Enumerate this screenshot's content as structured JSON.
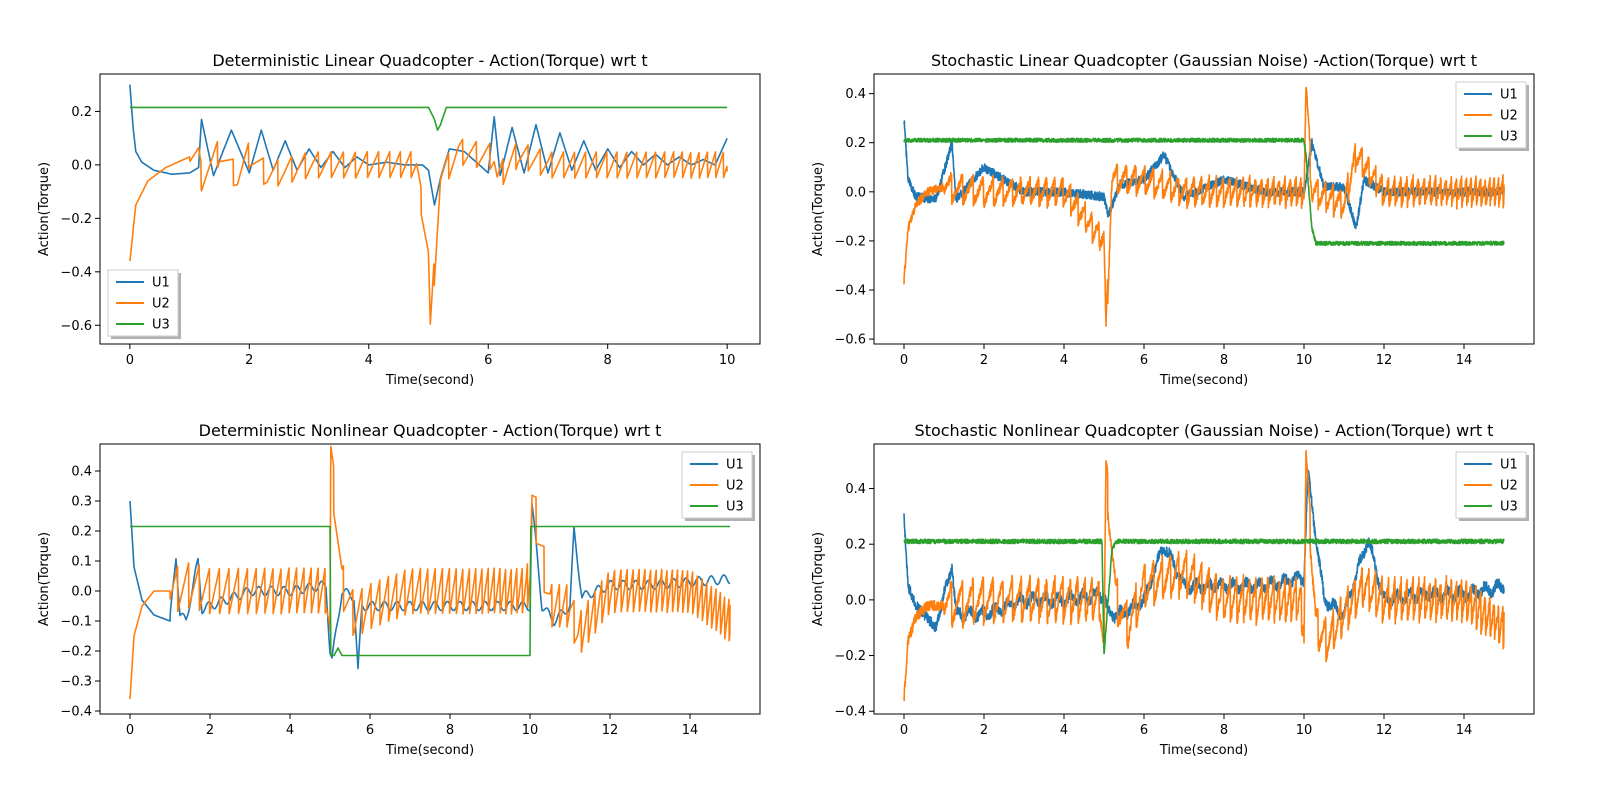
{
  "chart_data": [
    {
      "type": "line",
      "title": "Deterministic Linear Quadcopter - Action(Torque) wrt t",
      "xlabel": "Time(second)",
      "ylabel": "Action(Torque)",
      "xlim": [
        -0.5,
        10.55
      ],
      "ylim": [
        -0.67,
        0.34
      ],
      "xticks": [
        0,
        2,
        4,
        6,
        8,
        10
      ],
      "yticks": [
        -0.6,
        -0.4,
        -0.2,
        0.0,
        0.2
      ],
      "ytick_labels": [
        "−0.6",
        "−0.4",
        "−0.2",
        "0.0",
        "0.2"
      ],
      "legend": "lower-left",
      "t_end": 10,
      "series": [
        {
          "name": "U1",
          "color": "#1f77b4",
          "x": [
            0,
            0.05,
            0.1,
            0.2,
            0.4,
            0.7,
            1.0,
            1.15,
            1.2,
            1.4,
            1.7,
            2.0,
            2.2,
            2.4,
            2.6,
            2.8,
            3.0,
            3.2,
            3.4,
            3.6,
            3.8,
            4.0,
            4.3,
            4.6,
            4.9,
            5.0,
            5.1,
            5.2,
            5.35,
            5.6,
            6.0,
            6.1,
            6.2,
            6.4,
            6.6,
            6.8,
            7.0,
            7.2,
            7.4,
            7.6,
            7.8,
            8.0,
            8.2,
            8.4,
            8.6,
            8.8,
            9.0,
            9.2,
            9.4,
            9.6,
            9.8,
            10.0,
            10.05
          ],
          "y": [
            0.3,
            0.15,
            0.05,
            0.01,
            -0.02,
            -0.035,
            -0.03,
            -0.01,
            0.17,
            -0.04,
            0.13,
            -0.03,
            0.13,
            -0.02,
            0.09,
            -0.02,
            0.06,
            -0.01,
            0.05,
            -0.01,
            0.03,
            0.0,
            0.01,
            0.0,
            0.0,
            -0.02,
            -0.15,
            -0.05,
            0.06,
            0.05,
            -0.03,
            0.18,
            -0.04,
            0.14,
            -0.03,
            0.15,
            -0.03,
            0.12,
            -0.02,
            0.09,
            -0.02,
            0.06,
            -0.01,
            0.05,
            0.0,
            0.04,
            0.0,
            0.03,
            0.0,
            0.02,
            0.0,
            0.1,
            0.08
          ]
        },
        {
          "name": "U2",
          "color": "#ff7f0e",
          "x": [
            0,
            0.1,
            0.3,
            0.6,
            1.0,
            1.15,
            1.2,
            1.5,
            1.8,
            2.0,
            2.3,
            3.0,
            4.0,
            4.8,
            5.0,
            5.03,
            5.2,
            5.5,
            5.8,
            6.1,
            6.15,
            6.5,
            7.0,
            8.0,
            9.0,
            10.0,
            10.05
          ],
          "y": [
            -0.36,
            -0.15,
            -0.06,
            -0.01,
            0.03,
            0.03,
            -0.05,
            0.05,
            -0.05,
            0.04,
            -0.04,
            0.0,
            0.0,
            0.0,
            -0.35,
            -0.62,
            -0.05,
            0.05,
            0.04,
            0.03,
            -0.05,
            0.04,
            0.0,
            0.0,
            0.0,
            0.0,
            -0.02
          ]
        },
        {
          "name": "U3",
          "color": "#2ca02c",
          "x": [
            0,
            5.0,
            5.1,
            5.15,
            5.2,
            5.3,
            10.0
          ],
          "y": [
            0.215,
            0.215,
            0.17,
            0.13,
            0.15,
            0.215,
            0.215
          ]
        }
      ]
    },
    {
      "type": "line",
      "title": "Stochastic Linear Quadcopter (Gaussian Noise) -Action(Torque) wrt t",
      "xlabel": "Time(second)",
      "ylabel": "Action(Torque)",
      "xlim": [
        -0.75,
        15.75
      ],
      "ylim": [
        -0.62,
        0.48
      ],
      "xticks": [
        0,
        2,
        4,
        6,
        8,
        10,
        12,
        14
      ],
      "yticks": [
        -0.6,
        -0.4,
        -0.2,
        0.0,
        0.2,
        0.4
      ],
      "ytick_labels": [
        "−0.6",
        "−0.4",
        "−0.2",
        "0.0",
        "0.2",
        "0.4"
      ],
      "legend": "top-right",
      "t_end": 15,
      "series": [
        {
          "name": "U1",
          "color": "#1f77b4",
          "x": [
            0,
            0.1,
            0.3,
            0.8,
            1.2,
            1.3,
            2.0,
            3.0,
            4.0,
            5.0,
            5.1,
            5.4,
            6.0,
            6.5,
            7.0,
            8.0,
            9.0,
            10.0,
            10.2,
            10.5,
            11.0,
            11.3,
            11.5,
            12.0,
            13.0,
            14.0,
            15.0
          ],
          "y": [
            0.3,
            0.05,
            -0.02,
            -0.03,
            0.2,
            -0.03,
            0.1,
            0.0,
            0.0,
            -0.02,
            -0.1,
            0.03,
            0.05,
            0.15,
            -0.02,
            0.05,
            0.0,
            0.0,
            0.2,
            0.02,
            0.02,
            -0.15,
            0.05,
            0.0,
            0.0,
            0.0,
            0.0
          ]
        },
        {
          "name": "U2",
          "color": "#ff7f0e",
          "x": [
            0,
            0.1,
            0.3,
            0.6,
            1.0,
            2.0,
            3.0,
            4.0,
            5.0,
            5.05,
            5.2,
            6.0,
            7.0,
            8.0,
            9.0,
            10.0,
            10.05,
            10.2,
            11.0,
            11.3,
            12.0,
            13.0,
            14.0,
            15.0
          ],
          "y": [
            -0.36,
            -0.15,
            -0.05,
            0.0,
            0.02,
            0.0,
            0.0,
            0.0,
            -0.2,
            -0.57,
            0.05,
            0.05,
            0.0,
            0.0,
            0.0,
            0.0,
            0.44,
            0.0,
            -0.05,
            0.15,
            0.0,
            0.0,
            0.0,
            0.0
          ]
        },
        {
          "name": "U3",
          "color": "#2ca02c",
          "x": [
            0,
            10.0,
            10.05,
            10.2,
            10.3,
            15.0
          ],
          "y": [
            0.21,
            0.21,
            0.15,
            -0.15,
            -0.21,
            -0.21
          ]
        }
      ]
    },
    {
      "type": "line",
      "title": "Deterministic Nonlinear Quadcopter - Action(Torque) wrt t",
      "xlabel": "Time(second)",
      "ylabel": "Action(Torque)",
      "xlim": [
        -0.75,
        15.75
      ],
      "ylim": [
        -0.41,
        0.49
      ],
      "xticks": [
        0,
        2,
        4,
        6,
        8,
        10,
        12,
        14
      ],
      "yticks": [
        -0.4,
        -0.3,
        -0.2,
        -0.1,
        0.0,
        0.1,
        0.2,
        0.3,
        0.4
      ],
      "ytick_labels": [
        "−0.4",
        "−0.3",
        "−0.2",
        "−0.1",
        "0.0",
        "0.1",
        "0.2",
        "0.3",
        "0.4"
      ],
      "legend": "top-right",
      "t_end": 15,
      "series": [
        {
          "name": "U1",
          "color": "#1f77b4",
          "x": [
            0,
            0.1,
            0.3,
            0.6,
            1.0,
            1.15,
            1.25,
            1.4,
            1.7,
            1.8,
            2.0,
            3.0,
            4.0,
            4.9,
            5.0,
            5.05,
            5.3,
            5.6,
            5.7,
            5.8,
            6.0,
            7.0,
            8.0,
            9.0,
            10.0,
            10.05,
            10.3,
            10.6,
            11.0,
            11.1,
            11.3,
            12.0,
            13.0,
            14.0,
            15.0
          ],
          "y": [
            0.3,
            0.08,
            -0.03,
            -0.08,
            -0.1,
            0.12,
            -0.08,
            -0.1,
            0.1,
            -0.06,
            -0.05,
            0.0,
            0.0,
            0.02,
            -0.2,
            -0.23,
            0.0,
            -0.02,
            -0.27,
            -0.05,
            -0.05,
            -0.05,
            -0.05,
            -0.05,
            -0.05,
            0.29,
            -0.05,
            -0.1,
            -0.05,
            0.2,
            -0.02,
            0.02,
            0.02,
            0.03,
            0.04
          ]
        },
        {
          "name": "U2",
          "color": "#ff7f0e",
          "x": [
            0,
            0.1,
            0.3,
            0.6,
            1.0,
            1.5,
            2.0,
            3.0,
            4.0,
            4.9,
            5.0,
            5.02,
            5.3,
            5.6,
            6.0,
            7.0,
            8.0,
            9.0,
            9.9,
            10.0,
            10.05,
            10.5,
            11.0,
            11.2,
            12.0,
            13.0,
            14.0,
            15.0
          ],
          "y": [
            -0.36,
            -0.15,
            -0.05,
            0.0,
            0.0,
            0.02,
            0.0,
            0.0,
            0.0,
            0.0,
            -0.15,
            0.45,
            0.02,
            -0.08,
            -0.05,
            0.0,
            0.0,
            0.0,
            0.0,
            0.05,
            0.32,
            -0.05,
            -0.05,
            -0.15,
            0.0,
            0.0,
            0.0,
            -0.1
          ]
        },
        {
          "name": "U3",
          "color": "#2ca02c",
          "x": [
            0,
            5.0,
            5.02,
            5.1,
            5.2,
            5.3,
            5.4,
            10.0,
            10.02,
            15.0
          ],
          "y": [
            0.215,
            0.215,
            -0.215,
            -0.215,
            -0.19,
            -0.215,
            -0.215,
            -0.215,
            0.215,
            0.215
          ]
        }
      ]
    },
    {
      "type": "line",
      "title": "Stochastic Nonlinear Quadcopter (Gaussian Noise) - Action(Torque) wrt t",
      "xlabel": "Time(second)",
      "ylabel": "Action(Torque)",
      "xlim": [
        -0.75,
        15.75
      ],
      "ylim": [
        -0.41,
        0.56
      ],
      "xticks": [
        0,
        2,
        4,
        6,
        8,
        10,
        12,
        14
      ],
      "yticks": [
        -0.4,
        -0.2,
        0.0,
        0.2,
        0.4
      ],
      "ytick_labels": [
        "−0.4",
        "−0.2",
        "0.0",
        "0.2",
        "0.4"
      ],
      "legend": "top-right",
      "t_end": 15,
      "series": [
        {
          "name": "U1",
          "color": "#1f77b4",
          "x": [
            0,
            0.1,
            0.3,
            0.8,
            1.2,
            1.3,
            2.0,
            3.0,
            4.0,
            5.0,
            5.1,
            5.5,
            6.0,
            6.5,
            7.0,
            8.0,
            9.0,
            10.0,
            10.1,
            10.5,
            11.0,
            11.6,
            12.0,
            13.0,
            14.0,
            15.0
          ],
          "y": [
            0.3,
            0.05,
            -0.02,
            -0.1,
            0.13,
            -0.05,
            -0.05,
            0.0,
            0.0,
            0.02,
            -0.05,
            -0.05,
            0.0,
            0.2,
            0.05,
            0.05,
            0.05,
            0.08,
            0.45,
            0.0,
            -0.05,
            0.22,
            0.0,
            0.02,
            0.02,
            0.05
          ]
        },
        {
          "name": "U2",
          "color": "#ff7f0e",
          "x": [
            0,
            0.1,
            0.3,
            0.6,
            1.0,
            2.0,
            3.0,
            4.0,
            4.9,
            5.0,
            5.05,
            5.3,
            5.6,
            6.0,
            7.0,
            8.0,
            9.0,
            9.9,
            10.0,
            10.05,
            10.3,
            10.6,
            11.0,
            11.5,
            12.0,
            13.0,
            14.0,
            15.0
          ],
          "y": [
            -0.36,
            -0.15,
            -0.06,
            -0.02,
            -0.02,
            0.0,
            0.0,
            0.0,
            0.0,
            -0.2,
            0.46,
            0.0,
            -0.1,
            0.05,
            0.1,
            0.0,
            0.0,
            0.0,
            -0.1,
            0.52,
            -0.1,
            -0.15,
            -0.05,
            0.05,
            0.0,
            0.0,
            0.0,
            -0.1
          ]
        },
        {
          "name": "U3",
          "color": "#2ca02c",
          "x": [
            0,
            4.95,
            5.0,
            5.05,
            5.2,
            5.3,
            10.0,
            15.0
          ],
          "y": [
            0.21,
            0.21,
            -0.2,
            -0.1,
            0.18,
            0.21,
            0.21,
            0.21
          ]
        }
      ]
    }
  ]
}
